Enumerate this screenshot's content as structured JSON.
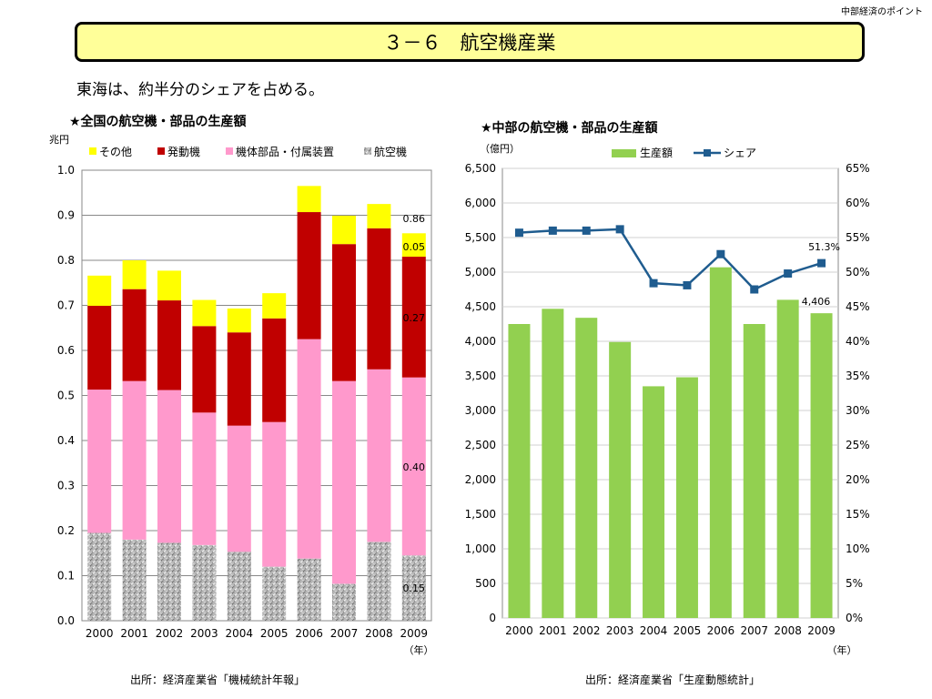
{
  "header": {
    "corner_label": "中部経済のポイント",
    "title": "３－６　航空機産業",
    "subtitle": "東海は、約半分のシェアを占める。"
  },
  "chart_data": [
    {
      "type": "bar",
      "stacked": true,
      "title": "★全国の航空機・部品の生産額",
      "ylabel": "兆円",
      "xlabel": "（年）",
      "ylim": [
        0,
        1.0
      ],
      "yticks": [
        "0.0",
        "0.1",
        "0.2",
        "0.3",
        "0.4",
        "0.5",
        "0.6",
        "0.7",
        "0.8",
        "0.9",
        "1.0"
      ],
      "categories": [
        "2000",
        "2001",
        "2002",
        "2003",
        "2004",
        "2005",
        "2006",
        "2007",
        "2008",
        "2009"
      ],
      "series": [
        {
          "name": "航空機",
          "color": "#a8a8a8",
          "values": [
            0.195,
            0.18,
            0.173,
            0.168,
            0.153,
            0.12,
            0.138,
            0.082,
            0.175,
            0.145
          ]
        },
        {
          "name": "機体部品・付属装置",
          "color": "#ff99cc",
          "values": [
            0.318,
            0.352,
            0.339,
            0.294,
            0.28,
            0.321,
            0.487,
            0.45,
            0.383,
            0.395
          ]
        },
        {
          "name": "発動機",
          "color": "#c00000",
          "values": [
            0.186,
            0.204,
            0.199,
            0.192,
            0.207,
            0.23,
            0.282,
            0.304,
            0.313,
            0.268
          ]
        },
        {
          "name": "その他",
          "color": "#ffff00",
          "values": [
            0.067,
            0.064,
            0.066,
            0.058,
            0.053,
            0.056,
            0.058,
            0.063,
            0.054,
            0.052
          ]
        }
      ],
      "legend": "top",
      "legend_order": [
        "その他",
        "発動機",
        "機体部品・付属装置",
        "航空機"
      ],
      "annotations": [
        "0.86",
        "0.05",
        "0.27",
        "0.40",
        "0.15"
      ],
      "source": "出所：経済産業省「機械統計年報」"
    },
    {
      "type": "bar",
      "title": "★中部の航空機・部品の生産額",
      "ylabel": "（億円）",
      "xlabel": "（年）",
      "ylim": [
        0,
        6500
      ],
      "yticks": [
        "0",
        "500",
        "1,000",
        "1,500",
        "2,000",
        "2,500",
        "3,000",
        "3,500",
        "4,000",
        "4,500",
        "5,000",
        "5,500",
        "6,000",
        "6,500"
      ],
      "y2lim": [
        0,
        65
      ],
      "y2ticks": [
        "0%",
        "5%",
        "10%",
        "15%",
        "20%",
        "25%",
        "30%",
        "35%",
        "40%",
        "45%",
        "50%",
        "55%",
        "60%",
        "65%"
      ],
      "categories": [
        "2000",
        "2001",
        "2002",
        "2003",
        "2004",
        "2005",
        "2006",
        "2007",
        "2008",
        "2009"
      ],
      "series": [
        {
          "name": "生産額",
          "type": "bar",
          "color": "#92d050",
          "values": [
            4250,
            4470,
            4340,
            3990,
            3350,
            3480,
            5070,
            4250,
            4600,
            4406
          ]
        },
        {
          "name": "シェア",
          "type": "line",
          "color": "#1f5c8f",
          "values": [
            55.7,
            56.0,
            56.0,
            56.2,
            48.4,
            48.1,
            52.6,
            47.5,
            49.8,
            51.3
          ]
        }
      ],
      "legend": "top",
      "annotations": [
        "51.3%",
        "4,406"
      ],
      "source": "出所：経済産業省「生産動態統計」"
    }
  ]
}
